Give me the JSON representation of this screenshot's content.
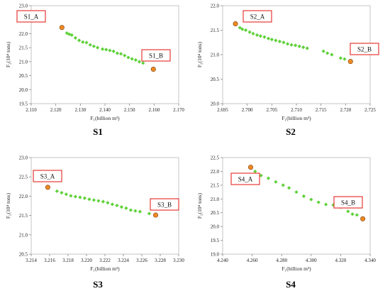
{
  "chart_data": [
    {
      "type": "scatter",
      "panel_label": "S1",
      "xlabel": "F₁(billion m³)",
      "ylabel": "F₂(10⁴ tons)",
      "xlim": [
        2.11,
        2.17
      ],
      "ylim": [
        19.5,
        23.0
      ],
      "xticks": [
        "2.110",
        "2.120",
        "2.130",
        "2.140",
        "2.150",
        "2.160",
        "2.170"
      ],
      "yticks": [
        "19.5",
        "20.0",
        "20.5",
        "21.0",
        "21.5",
        "22.0",
        "22.5",
        "23.0"
      ],
      "series": [
        {
          "points": [
            [
              2.1245,
              22.02
            ],
            [
              2.1255,
              21.98
            ],
            [
              2.1265,
              21.95
            ],
            [
              2.128,
              21.85
            ],
            [
              2.1295,
              21.76
            ],
            [
              2.131,
              21.7
            ],
            [
              2.1325,
              21.68
            ],
            [
              2.134,
              21.6
            ],
            [
              2.1355,
              21.55
            ],
            [
              2.137,
              21.5
            ],
            [
              2.139,
              21.45
            ],
            [
              2.1405,
              21.43
            ],
            [
              2.142,
              21.4
            ],
            [
              2.1435,
              21.37
            ],
            [
              2.145,
              21.3
            ],
            [
              2.1465,
              21.28
            ],
            [
              2.148,
              21.22
            ],
            [
              2.1495,
              21.15
            ],
            [
              2.151,
              21.1
            ],
            [
              2.1525,
              21.06
            ],
            [
              2.154,
              21.0
            ],
            [
              2.1555,
              20.95
            ]
          ]
        },
        {
          "points": [
            [
              2.1225,
              22.22
            ],
            [
              2.1597,
              20.73
            ]
          ],
          "annotations": [
            "S1_A",
            "S1_B"
          ]
        }
      ]
    },
    {
      "type": "scatter",
      "panel_label": "S2",
      "xlabel": "F₁(billion m³)",
      "ylabel": "F₂(10⁴ tons)",
      "xlim": [
        2.695,
        2.725
      ],
      "ylim": [
        20.0,
        22.0
      ],
      "xticks": [
        "2.695",
        "2.700",
        "2.705",
        "2.710",
        "2.715",
        "2.720",
        "2.725"
      ],
      "yticks": [
        "20.0",
        "20.5",
        "21.0",
        "21.5",
        "22.0"
      ],
      "series": [
        {
          "points": [
            [
              2.6985,
              21.55
            ],
            [
              2.699,
              21.52
            ],
            [
              2.6997,
              21.5
            ],
            [
              2.7005,
              21.46
            ],
            [
              2.7012,
              21.43
            ],
            [
              2.702,
              21.4
            ],
            [
              2.7027,
              21.38
            ],
            [
              2.7035,
              21.36
            ],
            [
              2.7043,
              21.33
            ],
            [
              2.705,
              21.31
            ],
            [
              2.7058,
              21.29
            ],
            [
              2.7066,
              21.27
            ],
            [
              2.7074,
              21.25
            ],
            [
              2.7082,
              21.22
            ],
            [
              2.709,
              21.2
            ],
            [
              2.7098,
              21.19
            ],
            [
              2.7106,
              21.17
            ],
            [
              2.7114,
              21.15
            ],
            [
              2.7122,
              21.13
            ],
            [
              2.7155,
              21.07
            ],
            [
              2.7163,
              21.03
            ],
            [
              2.7172,
              21.0
            ],
            [
              2.719,
              20.93
            ],
            [
              2.7198,
              20.91
            ]
          ]
        },
        {
          "points": [
            [
              2.6976,
              21.63
            ],
            [
              2.721,
              20.86
            ]
          ],
          "annotations": [
            "S2_A",
            "S2_B"
          ]
        }
      ]
    },
    {
      "type": "scatter",
      "panel_label": "S3",
      "xlabel": "F₁(billion m³)",
      "ylabel": "F₂(10⁴ tons)",
      "xlim": [
        3.214,
        3.23
      ],
      "ylim": [
        20.5,
        23.0
      ],
      "xticks": [
        "3.214",
        "3.216",
        "3.218",
        "3.220",
        "3.222",
        "3.224",
        "3.226",
        "3.228",
        "3.230"
      ],
      "yticks": [
        "20.5",
        "21.0",
        "21.5",
        "22.0",
        "22.5",
        "23.0"
      ],
      "series": [
        {
          "points": [
            [
              3.2168,
              22.13
            ],
            [
              3.2173,
              22.09
            ],
            [
              3.2178,
              22.05
            ],
            [
              3.2183,
              22.01
            ],
            [
              3.2188,
              21.99
            ],
            [
              3.2193,
              21.97
            ],
            [
              3.2198,
              21.95
            ],
            [
              3.2203,
              21.92
            ],
            [
              3.2208,
              21.9
            ],
            [
              3.2213,
              21.88
            ],
            [
              3.2218,
              21.86
            ],
            [
              3.2223,
              21.83
            ],
            [
              3.2228,
              21.79
            ],
            [
              3.2233,
              21.76
            ],
            [
              3.2238,
              21.72
            ],
            [
              3.2243,
              21.69
            ],
            [
              3.2248,
              21.64
            ],
            [
              3.2253,
              21.62
            ],
            [
              3.2258,
              21.6
            ],
            [
              3.2268,
              21.55
            ]
          ]
        },
        {
          "points": [
            [
              3.2158,
              22.23
            ],
            [
              3.2275,
              21.51
            ]
          ],
          "annotations": [
            "S3_A",
            "S3_B"
          ]
        }
      ]
    },
    {
      "type": "scatter",
      "panel_label": "S4",
      "xlabel": "F₁(billion m³)",
      "ylabel": "F₂(10⁴ tons)",
      "xlim": [
        4.24,
        4.34
      ],
      "ylim": [
        19.0,
        22.5
      ],
      "xticks": [
        "4.240",
        "4.260",
        "4.280",
        "4.300",
        "4.320",
        "4.340"
      ],
      "yticks": [
        "19.0",
        "19.5",
        "20.0",
        "20.5",
        "21.0",
        "21.5",
        "22.0",
        "22.5"
      ],
      "series": [
        {
          "points": [
            [
              4.262,
              22.0
            ],
            [
              4.266,
              21.85
            ],
            [
              4.271,
              21.75
            ],
            [
              4.276,
              21.62
            ],
            [
              4.281,
              21.5
            ],
            [
              4.285,
              21.4
            ],
            [
              4.29,
              21.25
            ],
            [
              4.295,
              21.1
            ],
            [
              4.3,
              20.98
            ],
            [
              4.305,
              20.88
            ],
            [
              4.31,
              20.8
            ],
            [
              4.315,
              20.78
            ],
            [
              4.32,
              20.7
            ],
            [
              4.325,
              20.55
            ],
            [
              4.328,
              20.45
            ],
            [
              4.331,
              20.42
            ]
          ]
        },
        {
          "points": [
            [
              4.259,
              22.15
            ],
            [
              4.335,
              20.28
            ]
          ],
          "annotations": [
            "S4_A",
            "S4_B"
          ]
        }
      ]
    }
  ]
}
